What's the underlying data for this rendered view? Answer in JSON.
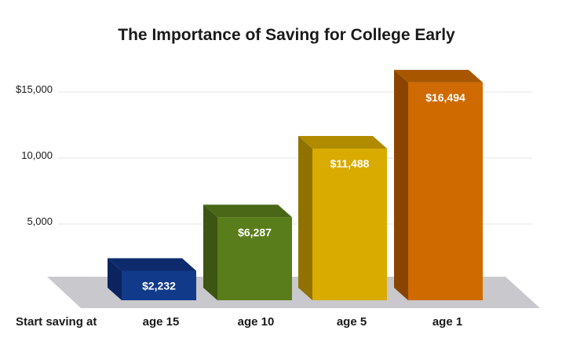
{
  "chart_data": {
    "type": "bar",
    "title": "The Importance of Saving for College Early",
    "xlabel": "Start saving at",
    "ylabel": "",
    "categories": [
      "age 15",
      "age 10",
      "age 5",
      "age 1"
    ],
    "values": [
      2232,
      6287,
      11488,
      16494
    ],
    "data_labels": [
      "$2,232",
      "$6,287",
      "$11,488",
      "$16,494"
    ],
    "yticks": [
      {
        "value": 5000,
        "label": "5,000"
      },
      {
        "value": 10000,
        "label": "10,000"
      },
      {
        "value": 15000,
        "label": "$15,000"
      }
    ],
    "ylim": [
      0,
      17000
    ],
    "grid": true,
    "legend": "none",
    "colors": [
      {
        "front": "#123a8a",
        "side": "#0b2460",
        "top": "#0d2b6c"
      },
      {
        "front": "#5a7d1b",
        "side": "#3c5512",
        "top": "#4a6717"
      },
      {
        "front": "#d9ab00",
        "side": "#8f7200",
        "top": "#b08b00"
      },
      {
        "front": "#cf6a00",
        "side": "#8a4400",
        "top": "#a85600"
      }
    ],
    "floor_color": "#c9c8cc",
    "grid_color": "#e4e4e4"
  }
}
